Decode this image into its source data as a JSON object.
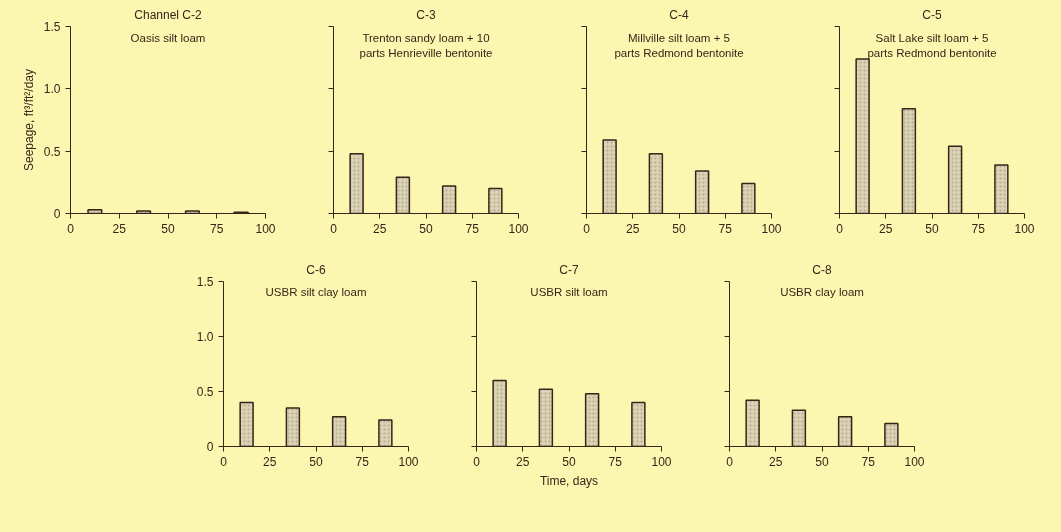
{
  "chart_data": [
    {
      "type": "bar",
      "title": "Channel C-2",
      "subtitle": "Oasis silt loam",
      "ylabel": "Seepage, ft³/ft²/day",
      "x": [
        12.5,
        37.5,
        62.5,
        87.5
      ],
      "values": [
        0.03,
        0.02,
        0.02,
        0.01
      ],
      "color": "#d9d3b4",
      "xlim": [
        0,
        100
      ],
      "xticks": [
        0,
        25,
        50,
        75,
        100
      ],
      "ylim": [
        0,
        1.5
      ],
      "yticks": [
        {
          "value": 0,
          "label": "0"
        },
        {
          "value": 0.5,
          "label": "0.5"
        },
        {
          "value": 1,
          "label": "1.0"
        },
        {
          "value": 1.5,
          "label": "1.5"
        }
      ],
      "grid": false
    },
    {
      "type": "bar",
      "title": "C-3",
      "subtitle": "Trenton sandy loam + 10\nparts Henrieville bentonite",
      "x": [
        12.5,
        37.5,
        62.5,
        87.5
      ],
      "values": [
        0.48,
        0.29,
        0.22,
        0.2
      ],
      "color": "#d9d3b4",
      "xlim": [
        0,
        100
      ],
      "xticks": [
        0,
        25,
        50,
        75,
        100
      ],
      "ylim": [
        0,
        1.5
      ],
      "yticks": [
        {
          "value": 0,
          "label": null
        },
        {
          "value": 0.5,
          "label": null
        },
        {
          "value": 1,
          "label": null
        },
        {
          "value": 1.5,
          "label": null
        }
      ],
      "tick_labels": "x",
      "grid": false
    },
    {
      "type": "bar",
      "title": "C-4",
      "subtitle": "Millville silt loam + 5\nparts Redmond bentonite",
      "x": [
        12.5,
        37.5,
        62.5,
        87.5
      ],
      "values": [
        0.59,
        0.48,
        0.34,
        0.24
      ],
      "color": "#d9d3b4",
      "xlim": [
        0,
        100
      ],
      "xticks": [
        0,
        25,
        50,
        75,
        100
      ],
      "ylim": [
        0,
        1.5
      ],
      "yticks": [
        {
          "value": 0,
          "label": null
        },
        {
          "value": 0.5,
          "label": null
        },
        {
          "value": 1,
          "label": null
        },
        {
          "value": 1.5,
          "label": null
        }
      ],
      "tick_labels": "x",
      "grid": false
    },
    {
      "type": "bar",
      "title": "C-5",
      "subtitle": "Salt Lake silt loam + 5\nparts Redmond bentonite",
      "x": [
        12.5,
        37.5,
        62.5,
        87.5
      ],
      "values": [
        1.24,
        0.84,
        0.54,
        0.39
      ],
      "color": "#d9d3b4",
      "xlim": [
        0,
        100
      ],
      "xticks": [
        0,
        25,
        50,
        75,
        100
      ],
      "ylim": [
        0,
        1.5
      ],
      "yticks": [
        {
          "value": 0,
          "label": null
        },
        {
          "value": 0.5,
          "label": null
        },
        {
          "value": 1,
          "label": null
        },
        {
          "value": 1.5,
          "label": null
        }
      ],
      "tick_labels": "x",
      "grid": false
    },
    {
      "type": "bar",
      "title": "C-6",
      "subtitle": "USBR silt clay loam",
      "x": [
        12.5,
        37.5,
        62.5,
        87.5
      ],
      "values": [
        0.4,
        0.35,
        0.27,
        0.24
      ],
      "color": "#d9d3b4",
      "xlim": [
        0,
        100
      ],
      "xticks": [
        0,
        25,
        50,
        75,
        100
      ],
      "ylim": [
        0,
        1.5
      ],
      "yticks": [
        {
          "value": 0,
          "label": "0"
        },
        {
          "value": 0.5,
          "label": "0.5"
        },
        {
          "value": 1,
          "label": "1.0"
        },
        {
          "value": 1.5,
          "label": "1.5"
        }
      ],
      "grid": false
    },
    {
      "type": "bar",
      "title": "C-7",
      "subtitle": "USBR silt loam",
      "xlabel": "Time, days",
      "x": [
        12.5,
        37.5,
        62.5,
        87.5
      ],
      "values": [
        0.6,
        0.52,
        0.48,
        0.4
      ],
      "color": "#d9d3b4",
      "xlim": [
        0,
        100
      ],
      "xticks": [
        0,
        25,
        50,
        75,
        100
      ],
      "ylim": [
        0,
        1.5
      ],
      "yticks": [
        {
          "value": 0,
          "label": null
        },
        {
          "value": 0.5,
          "label": null
        },
        {
          "value": 1,
          "label": null
        },
        {
          "value": 1.5,
          "label": null
        }
      ],
      "tick_labels": "x",
      "grid": false
    },
    {
      "type": "bar",
      "title": "C-8",
      "subtitle": "USBR clay loam",
      "x": [
        12.5,
        37.5,
        62.5,
        87.5
      ],
      "values": [
        0.42,
        0.33,
        0.27,
        0.21
      ],
      "color": "#d9d3b4",
      "xlim": [
        0,
        100
      ],
      "xticks": [
        0,
        25,
        50,
        75,
        100
      ],
      "ylim": [
        0,
        1.5
      ],
      "yticks": [
        {
          "value": 0,
          "label": null
        },
        {
          "value": 0.5,
          "label": null
        },
        {
          "value": 1,
          "label": null
        },
        {
          "value": 1.5,
          "label": null
        }
      ],
      "tick_labels": "x",
      "grid": false
    }
  ]
}
